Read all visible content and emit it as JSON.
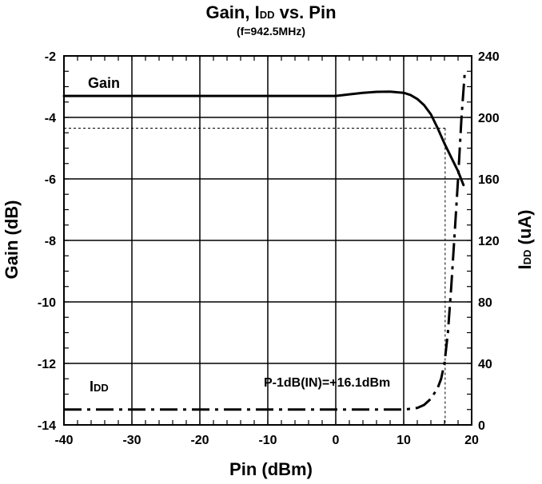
{
  "chart_data": {
    "type": "line",
    "title_main": "Gain, ",
    "title_i": "I",
    "title_sub_dd": "DD",
    "title_rest": " vs. Pin",
    "subtitle": "(f=942.5MHz)",
    "xlabel": "Pin (dBm)",
    "ylabel_left": "Gain (dB)",
    "ylabel_right_i": "I",
    "ylabel_right_dd": "DD",
    "ylabel_right_rest": " (uA)",
    "xlim": [
      -40,
      20
    ],
    "ylim_left": [
      -14,
      -2
    ],
    "ylim_right": [
      0,
      240
    ],
    "x_ticks": [
      "-40",
      "-30",
      "-20",
      "-10",
      "0",
      "10",
      "20"
    ],
    "y_left_ticks": [
      "-2",
      "-4",
      "-6",
      "-8",
      "-10",
      "-12",
      "-14"
    ],
    "y_right_ticks": [
      "240",
      "200",
      "160",
      "120",
      "80",
      "40",
      "0"
    ],
    "grid": true,
    "series": [
      {
        "name": "Gain",
        "axis": "left",
        "style": "solid",
        "color": "#000000",
        "x": [
          -40,
          -30,
          -20,
          -10,
          -2,
          0,
          2,
          4,
          6,
          8,
          10,
          11,
          12,
          13,
          14,
          15,
          16,
          17,
          18,
          18.8
        ],
        "y": [
          -3.3,
          -3.3,
          -3.3,
          -3.3,
          -3.3,
          -3.3,
          -3.25,
          -3.2,
          -3.17,
          -3.16,
          -3.2,
          -3.27,
          -3.4,
          -3.6,
          -3.9,
          -4.35,
          -4.85,
          -5.3,
          -5.75,
          -6.2
        ]
      },
      {
        "name": "DD",
        "axis": "right",
        "style": "dash-dot",
        "color": "#000000",
        "x": [
          -40,
          -30,
          -20,
          -10,
          0,
          5,
          10,
          12,
          13,
          14,
          15,
          15.5,
          16,
          16.5,
          17,
          17.5,
          18,
          18.5,
          19
        ],
        "y": [
          10,
          10,
          10,
          10,
          10,
          10,
          10,
          11,
          13,
          17,
          24,
          30,
          40,
          60,
          90,
          125,
          160,
          200,
          230
        ]
      }
    ],
    "reference_lines": [
      {
        "orientation": "horizontal",
        "axis": "left",
        "value": -4.35,
        "style": "dashed"
      },
      {
        "orientation": "vertical",
        "value": 16.1,
        "style": "dashed"
      }
    ],
    "annotations": {
      "gain_label": "Gain",
      "idd_label_i": "I",
      "idd_label_dd": "DD",
      "p1db": "P-1dB(IN)=+16.1dBm"
    }
  }
}
